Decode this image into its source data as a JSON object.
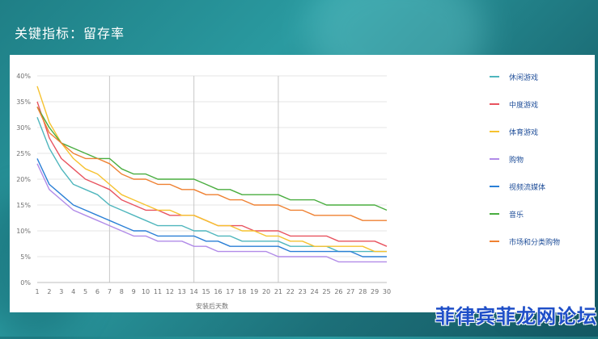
{
  "slide": {
    "title": "关键指标：留存率"
  },
  "watermark": {
    "text": "菲律宾菲龙网论坛"
  },
  "chart_data": {
    "type": "line",
    "xlabel": "安装后天数",
    "ylabel": "",
    "ylim": [
      0,
      40
    ],
    "yticks": [
      "0%",
      "5%",
      "10%",
      "15%",
      "20%",
      "25%",
      "30%",
      "35%",
      "40%"
    ],
    "x": [
      1,
      2,
      3,
      4,
      5,
      6,
      7,
      8,
      9,
      10,
      11,
      12,
      13,
      14,
      15,
      16,
      17,
      18,
      19,
      20,
      21,
      22,
      23,
      24,
      25,
      26,
      27,
      28,
      29,
      30
    ],
    "vertical_markers": [
      7,
      14,
      21
    ],
    "legend_position": "right",
    "series": [
      {
        "name": "休闲游戏",
        "color": "#4fb6bd",
        "values": [
          32,
          26,
          22,
          19,
          18,
          17,
          15,
          14,
          13,
          12,
          11,
          11,
          11,
          10,
          10,
          9,
          9,
          8,
          8,
          8,
          8,
          7,
          7,
          7,
          7,
          6,
          6,
          6,
          6,
          6
        ]
      },
      {
        "name": "中度游戏",
        "color": "#e8535f",
        "values": [
          35,
          28,
          24,
          22,
          20,
          19,
          18,
          16,
          15,
          14,
          14,
          13,
          13,
          13,
          12,
          11,
          11,
          11,
          10,
          10,
          10,
          9,
          9,
          9,
          9,
          8,
          8,
          8,
          8,
          7
        ]
      },
      {
        "name": "体育游戏",
        "color": "#f6c22f",
        "values": [
          38,
          31,
          27,
          24,
          22,
          21,
          19,
          17,
          16,
          15,
          14,
          14,
          13,
          13,
          12,
          11,
          11,
          10,
          10,
          9,
          9,
          8,
          8,
          7,
          7,
          7,
          7,
          7,
          6,
          6
        ]
      },
      {
        "name": "购物",
        "color": "#b18be8",
        "values": [
          23,
          18,
          16,
          14,
          13,
          12,
          11,
          10,
          9,
          9,
          8,
          8,
          8,
          7,
          7,
          6,
          6,
          6,
          6,
          6,
          5,
          5,
          5,
          5,
          5,
          4,
          4,
          4,
          4,
          4
        ]
      },
      {
        "name": "视频流媒体",
        "color": "#2a7fd6",
        "values": [
          24,
          19,
          17,
          15,
          14,
          13,
          12,
          11,
          10,
          10,
          9,
          9,
          9,
          9,
          8,
          8,
          7,
          7,
          7,
          7,
          7,
          6,
          6,
          6,
          6,
          6,
          6,
          5,
          5,
          5
        ]
      },
      {
        "name": "音乐",
        "color": "#49ad3f",
        "values": [
          34,
          30,
          27,
          26,
          25,
          24,
          24,
          22,
          21,
          21,
          20,
          20,
          20,
          20,
          19,
          18,
          18,
          17,
          17,
          17,
          17,
          16,
          16,
          16,
          15,
          15,
          15,
          15,
          15,
          14
        ]
      },
      {
        "name": "市场和分类购物",
        "color": "#ef8132",
        "values": [
          34,
          29,
          27,
          25,
          24,
          24,
          23,
          21,
          20,
          20,
          19,
          19,
          18,
          18,
          17,
          17,
          16,
          16,
          15,
          15,
          15,
          14,
          14,
          13,
          13,
          13,
          13,
          12,
          12,
          12
        ]
      }
    ]
  }
}
